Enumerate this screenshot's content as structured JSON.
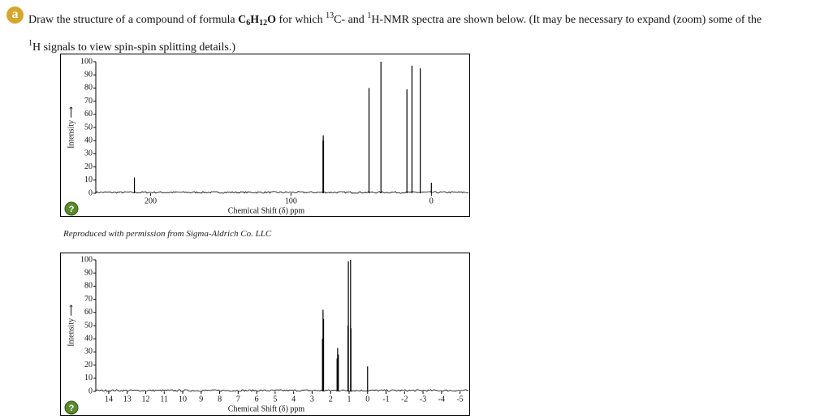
{
  "badge": "a",
  "question": [
    [
      {
        "text": "Draw the structure of a compound of formula ",
        "style": "normal"
      },
      {
        "text": "C",
        "style": "bold"
      },
      {
        "text": "6",
        "style": "bold-sub"
      },
      {
        "text": "H",
        "style": "bold"
      },
      {
        "text": "12",
        "style": "bold-sub"
      },
      {
        "text": "O",
        "style": "bold"
      },
      {
        "text": " for which ",
        "style": "normal"
      },
      {
        "text": "13",
        "style": "sup"
      },
      {
        "text": "C- and ",
        "style": "normal"
      },
      {
        "text": "1",
        "style": "sup"
      },
      {
        "text": "H-NMR spectra are shown below. (It may be necessary to expand (zoom) some of the",
        "style": "normal"
      }
    ],
    [
      {
        "text": "1",
        "style": "sup"
      },
      {
        "text": "H signals to view spin-spin splitting details.)",
        "style": "normal"
      }
    ]
  ],
  "caption": "Reproduced with permission from Sigma-Aldrich Co. LLC",
  "help_label": "?",
  "chart_data": [
    {
      "type": "spectrum",
      "xlabel": "Chemical Shift (δ) ppm",
      "ylabel": "Intensity ⟶",
      "x": [
        211.5,
        77.2,
        77.0,
        76.8,
        44.4,
        35.9,
        17.4,
        13.8,
        7.9,
        0
      ],
      "values": [
        12,
        40,
        44,
        40,
        80,
        100,
        79,
        97,
        95,
        8
      ],
      "xlim": [
        239,
        -27
      ],
      "xticks": [
        200,
        100,
        0
      ],
      "ylim": [
        0,
        100
      ],
      "yticks": [
        0,
        10,
        20,
        30,
        40,
        50,
        60,
        70,
        80,
        90,
        100
      ],
      "color": "#000000"
    },
    {
      "type": "spectrum",
      "xlabel": "Chemical Shift (δ) ppm",
      "ylabel": "Intensity ⟶",
      "x": [
        2.44,
        2.41,
        2.38,
        1.65,
        1.62,
        1.58,
        1.06,
        1.04,
        0.92,
        0.9,
        0
      ],
      "values": [
        40,
        62,
        55,
        25,
        33,
        28,
        50,
        99,
        100,
        48,
        19
      ],
      "xlim": [
        14.7,
        -5.5
      ],
      "xticks": [
        14,
        13,
        12,
        11,
        10,
        9,
        8,
        7,
        6,
        5,
        4,
        3,
        2,
        1,
        0,
        -1,
        -2,
        -3,
        -4,
        -5
      ],
      "ylim": [
        0,
        100
      ],
      "yticks": [
        0,
        10,
        20,
        30,
        40,
        50,
        60,
        70,
        80,
        90,
        100
      ],
      "color": "#000000"
    }
  ]
}
